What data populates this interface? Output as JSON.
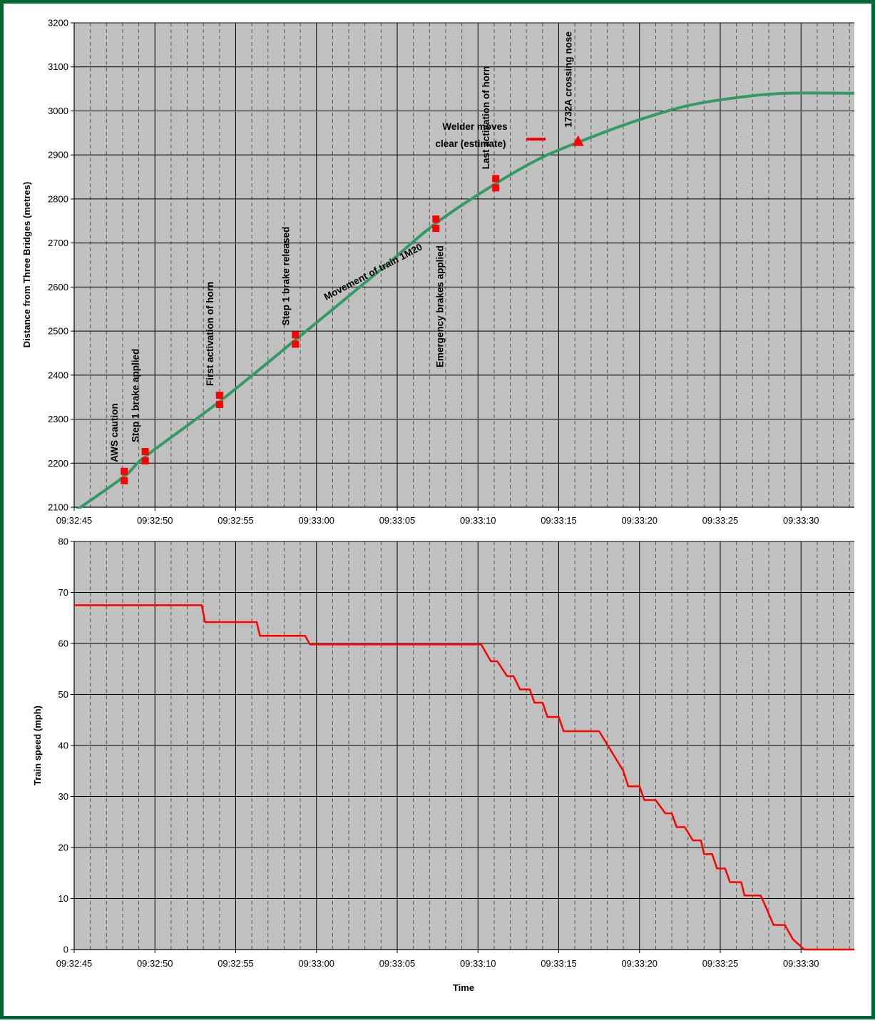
{
  "colors": {
    "border": "#006633",
    "plot_bg": "#C0C0C0",
    "grid_major": "#000000",
    "grid_minor": "#555555",
    "distance_line": "#339966",
    "speed_line": "#FF0000",
    "marker": "#FF0000"
  },
  "chart_data": [
    {
      "type": "line",
      "ylabel": "Distance from Three Bridges (metres)",
      "xlabel": "",
      "xlim": [
        0,
        48.3
      ],
      "ylim": [
        2100,
        3200
      ],
      "x_tick_labels": [
        "09:32:45",
        "09:32:50",
        "09:32:55",
        "09:33:00",
        "09:33:05",
        "09:33:10",
        "09:33:15",
        "09:33:20",
        "09:33:25",
        "09:33:30"
      ],
      "x_tick_values": [
        0,
        5,
        10,
        15,
        20,
        25,
        30,
        35,
        40,
        45
      ],
      "y_ticks": [
        2100,
        2200,
        2300,
        2400,
        2500,
        2600,
        2700,
        2800,
        2900,
        3000,
        3100,
        3200
      ],
      "series": [
        {
          "name": "Movement of train 1M20",
          "x": [
            0,
            3.1,
            4.4,
            9,
            13.7,
            19,
            22.4,
            26.1,
            29,
            32,
            35,
            38,
            41,
            44,
            48.3
          ],
          "y": [
            2090,
            2170,
            2215,
            2340,
            2480,
            2640,
            2745,
            2835,
            2895,
            2940,
            2980,
            3012,
            3030,
            3040,
            3040
          ]
        }
      ],
      "markers": [
        {
          "type": "bar",
          "x": 3.1,
          "y": 2170,
          "label": "AWS caution"
        },
        {
          "type": "bar",
          "x": 4.4,
          "y": 2215,
          "label": "Step 1 brake applied"
        },
        {
          "type": "bar",
          "x": 9.0,
          "y": 2343,
          "label": "First activation of horn"
        },
        {
          "type": "bar",
          "x": 13.7,
          "y": 2480,
          "label": "Step 1 brake released"
        },
        {
          "type": "bar",
          "x": 22.4,
          "y": 2743,
          "label": "Emergency brakes applied"
        },
        {
          "type": "bar",
          "x": 26.1,
          "y": 2835,
          "label": "Last activation of horn"
        },
        {
          "type": "triangle",
          "x": 31.2,
          "y": 2930,
          "label": "1732A crossing nose"
        }
      ],
      "annotations": {
        "line_label": "Movement of train 1M20",
        "welder_line1": "Welder moves",
        "welder_line2": "clear (estimate)"
      }
    },
    {
      "type": "line",
      "xlabel": "Time",
      "ylabel": "Train speed (mph)",
      "xlim": [
        0,
        48.3
      ],
      "ylim": [
        0,
        80
      ],
      "x_tick_labels": [
        "09:32:45",
        "09:32:50",
        "09:32:55",
        "09:33:00",
        "09:33:05",
        "09:33:10",
        "09:33:15",
        "09:33:20",
        "09:33:25",
        "09:33:30"
      ],
      "x_tick_values": [
        0,
        5,
        10,
        15,
        20,
        25,
        30,
        35,
        40,
        45
      ],
      "y_ticks": [
        0,
        10,
        20,
        30,
        40,
        50,
        60,
        70,
        80
      ],
      "series": [
        {
          "name": "",
          "x": [
            0,
            7.9,
            8.1,
            11.3,
            11.5,
            14.3,
            14.6,
            25.2,
            25.8,
            26.2,
            26.8,
            27.2,
            27.6,
            28.2,
            28.5,
            29.0,
            29.3,
            30.0,
            30.3,
            32.5,
            34.0,
            34.3,
            35.0,
            35.3,
            36.0,
            36.6,
            37.0,
            37.3,
            37.8,
            38.3,
            38.8,
            39.0,
            39.5,
            39.8,
            40.3,
            40.6,
            41.3,
            41.5,
            42.5,
            42.9,
            43.3,
            44.0,
            44.5,
            45.2,
            46.0,
            48.3
          ],
          "y": [
            67.5,
            67.5,
            64.2,
            64.2,
            61.5,
            61.5,
            59.8,
            59.8,
            56.5,
            56.5,
            53.6,
            53.6,
            51.0,
            51.0,
            48.4,
            48.4,
            45.6,
            45.6,
            42.8,
            42.8,
            35,
            32,
            32,
            29.3,
            29.3,
            26.7,
            26.7,
            24.0,
            24.0,
            21.4,
            21.4,
            18.7,
            18.7,
            15.9,
            15.9,
            13.2,
            13.2,
            10.6,
            10.6,
            7.8,
            4.8,
            4.8,
            2.0,
            0,
            0,
            0
          ]
        }
      ]
    }
  ]
}
